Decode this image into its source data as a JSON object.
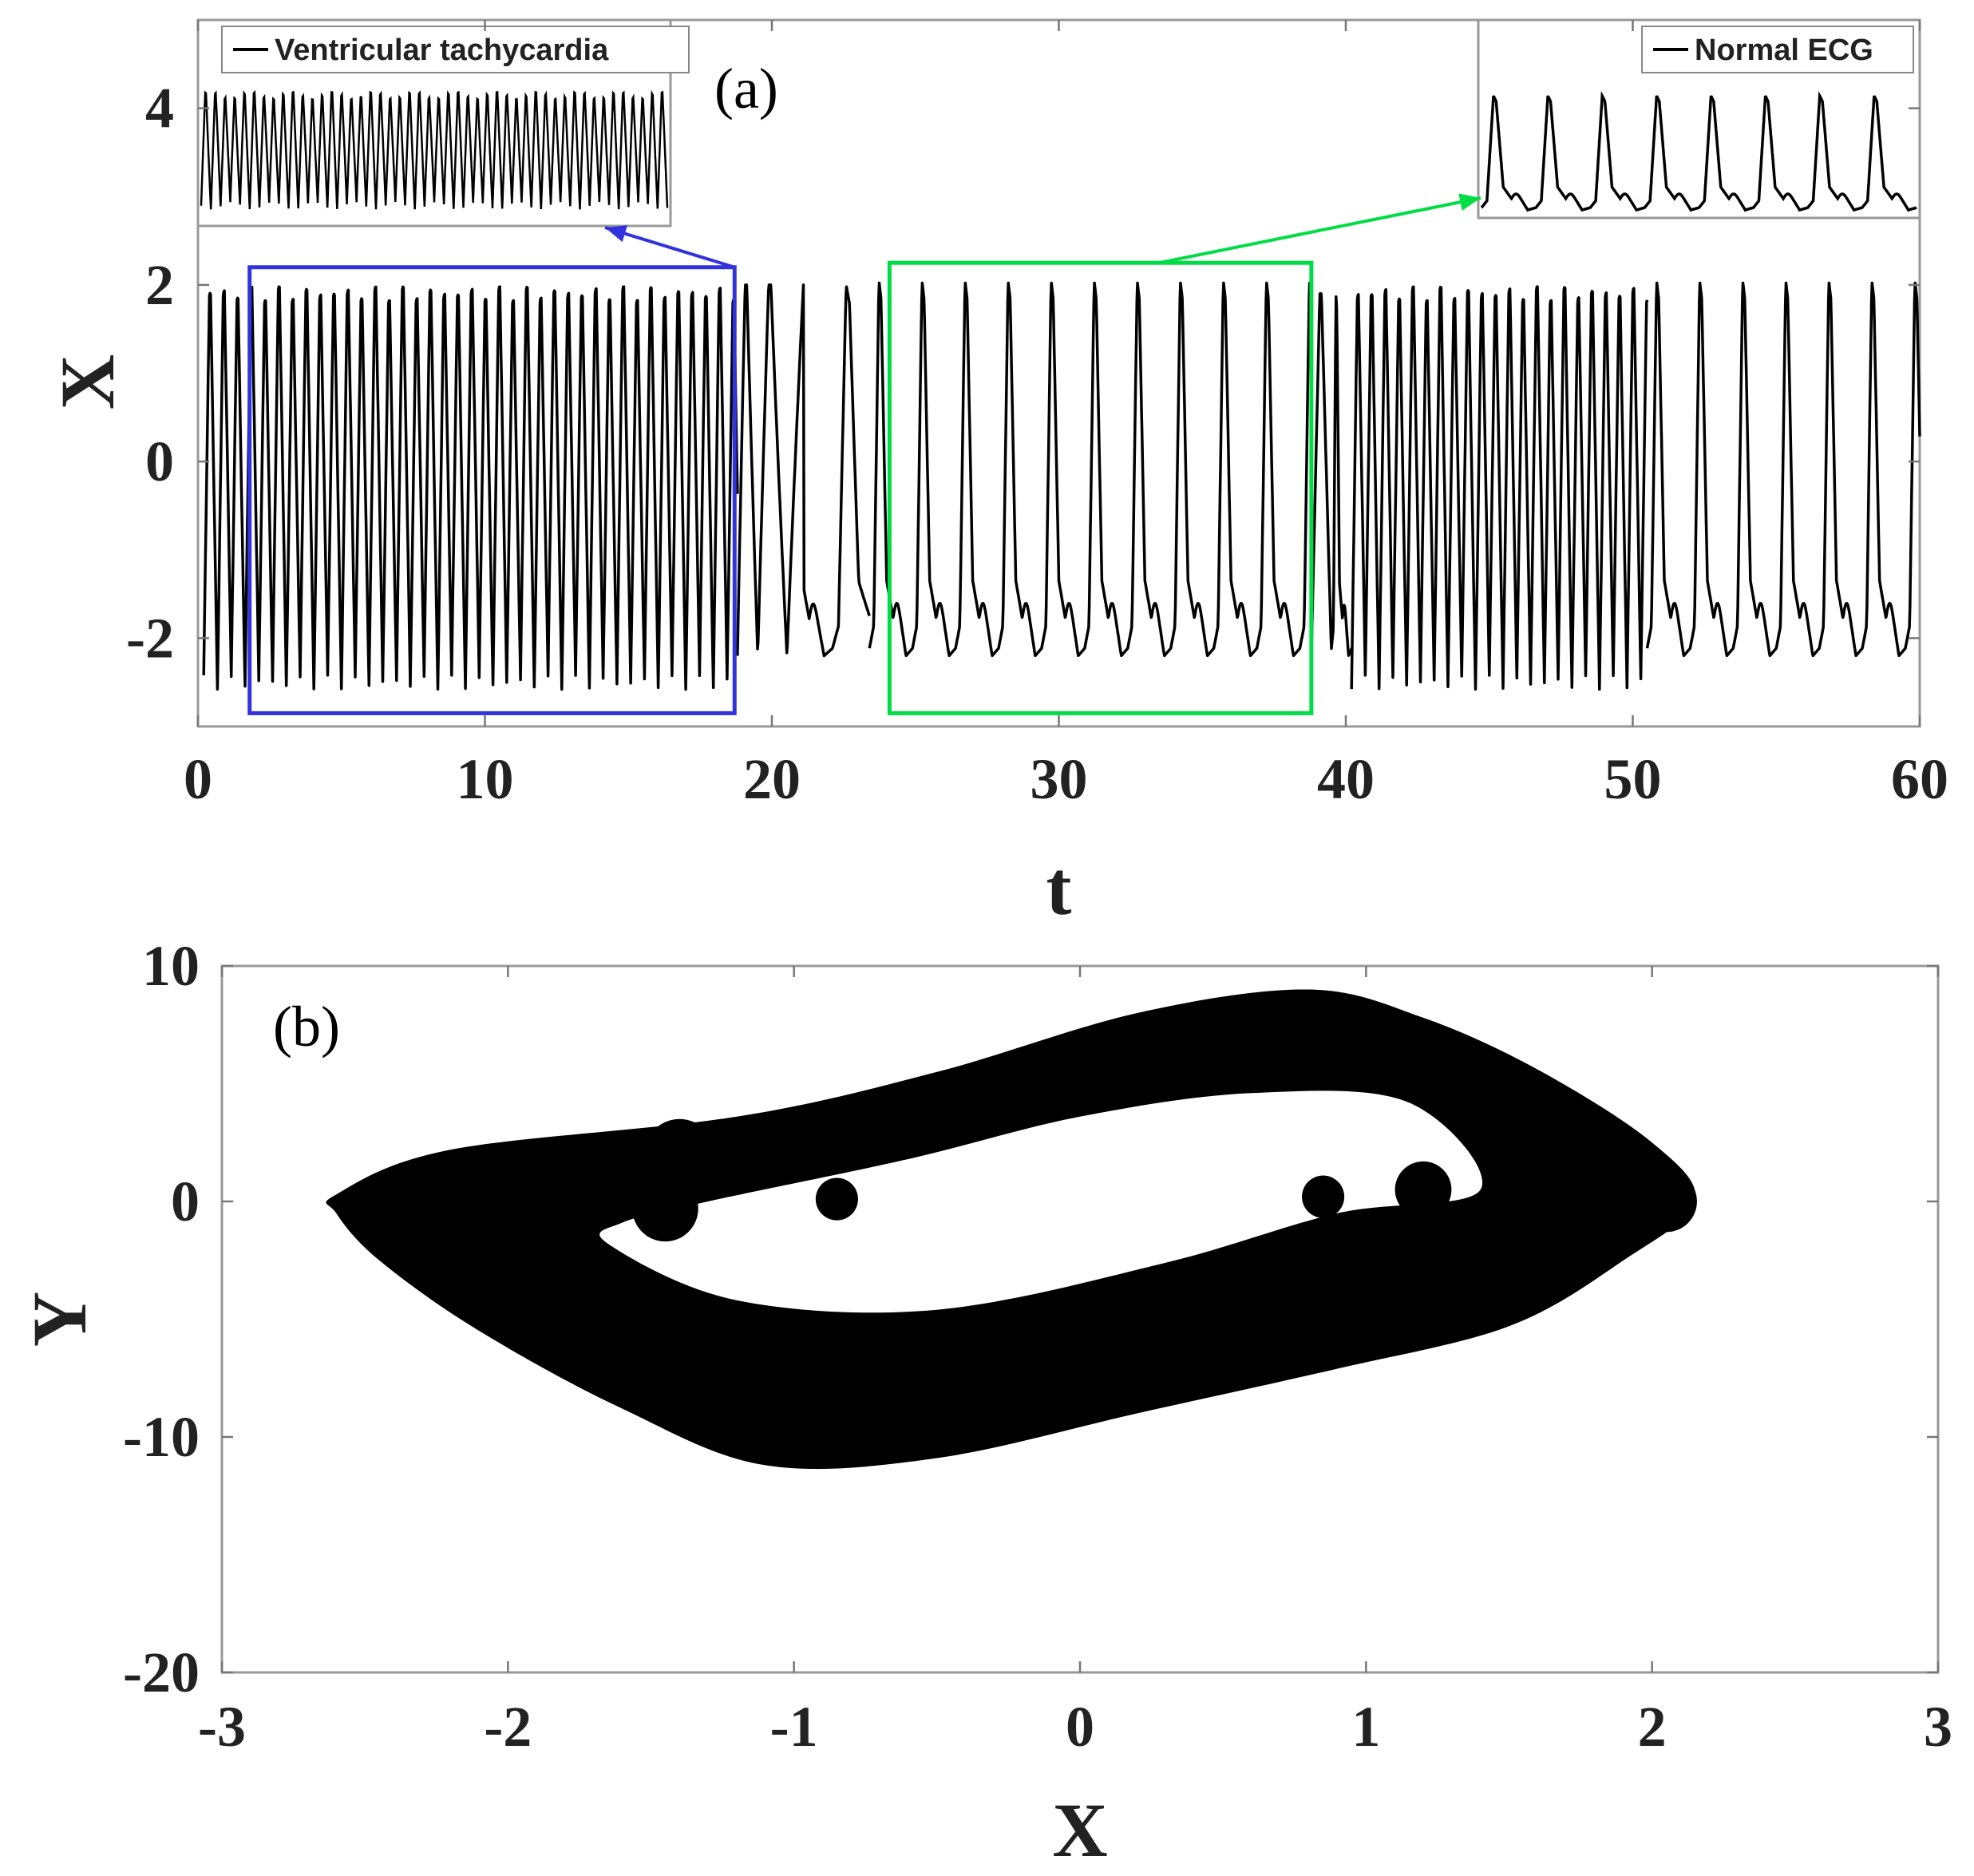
{
  "chart_data": [
    {
      "panel_label": "(a)",
      "type": "line",
      "xlabel": "t",
      "ylabel": "X",
      "xlim": [
        0,
        60
      ],
      "ylim": [
        -3,
        5
      ],
      "xticks": [
        0,
        10,
        20,
        30,
        40,
        50,
        60
      ],
      "yticks": [
        -2,
        0,
        2,
        4
      ],
      "grid": false,
      "series": [
        {
          "color": "#000000",
          "segments": [
            {
              "t_start": 0.2,
              "t_end": 18.8,
              "regime": "ventricular tachycardia",
              "period": 0.48,
              "x_min": -2.5,
              "x_max": 1.9
            },
            {
              "t_start": 18.8,
              "t_end": 23.4,
              "regime": "transition",
              "period_start": 0.6,
              "period_end": 1.3,
              "x_min": -2.2,
              "x_max": 2.0
            },
            {
              "t_start": 23.4,
              "t_end": 38.8,
              "regime": "normal ECG",
              "period": 1.5,
              "x_min": -2.2,
              "x_max": 2.05
            },
            {
              "t_start": 38.8,
              "t_end": 40.2,
              "regime": "transition",
              "x_min": -2.2,
              "x_max": 1.9
            },
            {
              "t_start": 40.2,
              "t_end": 50.5,
              "regime": "ventricular tachycardia",
              "period": 0.48,
              "x_min": -2.5,
              "x_max": 1.9
            },
            {
              "t_start": 50.5,
              "t_end": 60.0,
              "regime": "normal ECG",
              "period": 1.5,
              "x_min": -2.2,
              "x_max": 2.05
            }
          ]
        }
      ],
      "highlight_boxes": [
        {
          "color": "#3333dd",
          "t_range": [
            1.8,
            18.7
          ],
          "x_range": [
            -2.85,
            2.2
          ]
        },
        {
          "color": "#00dd44",
          "t_range": [
            24.1,
            38.8
          ],
          "x_range": [
            -2.85,
            2.25
          ]
        }
      ],
      "insets": [
        {
          "legend": "Ventricular tachycardia",
          "source_box": 0,
          "cycles": 48
        },
        {
          "legend": "Normal ECG",
          "source_box": 1,
          "cycles": 8
        }
      ]
    },
    {
      "panel_label": "(b)",
      "type": "scatter",
      "description": "dense phase trajectory of Y versus X",
      "xlabel": "X",
      "ylabel": "Y",
      "xlim": [
        -3,
        3
      ],
      "ylim": [
        -20,
        10
      ],
      "xticks": [
        -3,
        -2,
        -1,
        0,
        1,
        2,
        3
      ],
      "yticks": [
        -20,
        -10,
        0,
        10
      ],
      "grid": false,
      "series": [
        {
          "color": "#000000",
          "outer_boundary": [
            [
              -2.6,
              -0.5
            ],
            [
              -2.45,
              -2.5
            ],
            [
              -2.1,
              -5.5
            ],
            [
              -1.6,
              -8.8
            ],
            [
              -1.1,
              -11.2
            ],
            [
              -0.5,
              -10.9
            ],
            [
              0.2,
              -9.0
            ],
            [
              0.9,
              -7.1
            ],
            [
              1.5,
              -5.3
            ],
            [
              1.9,
              -2.5
            ],
            [
              2.15,
              0.0
            ],
            [
              2.0,
              2.5
            ],
            [
              1.6,
              5.6
            ],
            [
              1.2,
              7.8
            ],
            [
              0.8,
              9.0
            ],
            [
              0.2,
              8.0
            ],
            [
              -0.5,
              5.5
            ],
            [
              -1.2,
              3.6
            ],
            [
              -2.2,
              2.2
            ],
            [
              -2.6,
              0.3
            ]
          ],
          "inner_hole": [
            [
              -1.65,
              -1.8
            ],
            [
              -1.2,
              -4.2
            ],
            [
              -0.5,
              -4.6
            ],
            [
              0.3,
              -2.6
            ],
            [
              0.9,
              -0.5
            ],
            [
              1.4,
              0.5
            ],
            [
              1.15,
              4.2
            ],
            [
              0.6,
              4.6
            ],
            [
              0.0,
              3.6
            ],
            [
              -0.6,
              1.8
            ],
            [
              -1.3,
              0.0
            ],
            [
              -1.6,
              -0.9
            ]
          ],
          "markers": [
            {
              "x": -1.45,
              "y": -0.3,
              "r": 1.4
            },
            {
              "x": -1.4,
              "y": 2.0,
              "r": 1.5
            },
            {
              "x": -0.85,
              "y": 0.1,
              "r": 0.9
            },
            {
              "x": -0.85,
              "y": 2.6,
              "r": 1.3
            },
            {
              "x": 0.85,
              "y": 0.2,
              "r": 0.9
            },
            {
              "x": 1.2,
              "y": 0.5,
              "r": 1.2
            },
            {
              "x": 2.05,
              "y": 0.0,
              "r": 1.3
            }
          ]
        }
      ]
    }
  ]
}
